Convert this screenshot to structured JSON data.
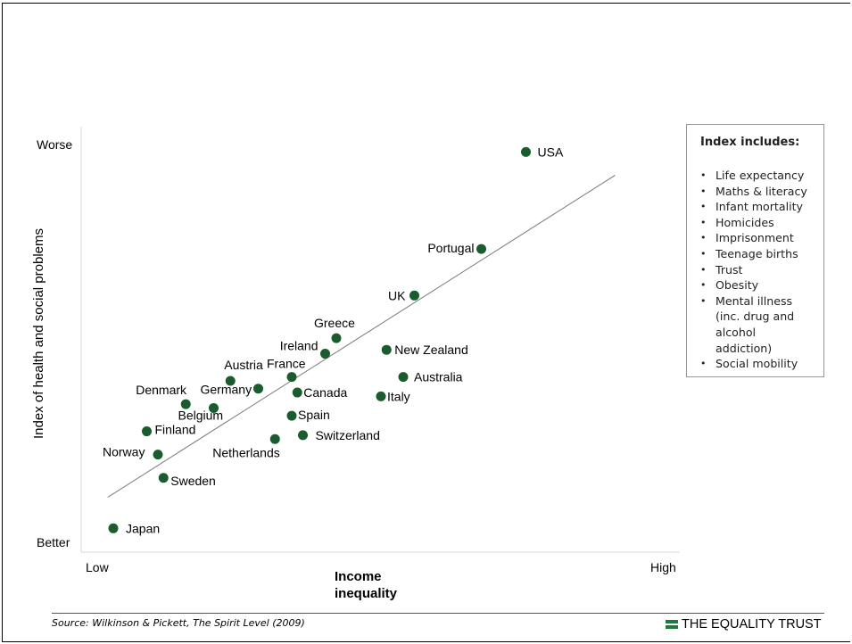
{
  "chart_data": {
    "type": "scatter",
    "xlabel": "Income\ninequality",
    "ylabel": "Index of health and social problems",
    "x_tick_labels": [
      "Low",
      "High"
    ],
    "y_tick_labels": [
      "Worse",
      "Better"
    ],
    "xlim": [
      0,
      1
    ],
    "ylim": [
      0,
      1
    ],
    "point_color": "#1a5c2e",
    "trendline_color": "#777777",
    "trendline": [
      [
        0.03,
        0.1
      ],
      [
        0.94,
        0.93
      ]
    ],
    "points": [
      {
        "name": "USA",
        "x": 0.78,
        "y": 0.99
      },
      {
        "name": "Portugal",
        "x": 0.7,
        "y": 0.74
      },
      {
        "name": "UK",
        "x": 0.58,
        "y": 0.62
      },
      {
        "name": "Greece",
        "x": 0.44,
        "y": 0.51
      },
      {
        "name": "New Zealand",
        "x": 0.53,
        "y": 0.48
      },
      {
        "name": "Ireland",
        "x": 0.42,
        "y": 0.47
      },
      {
        "name": "Australia",
        "x": 0.56,
        "y": 0.41
      },
      {
        "name": "France",
        "x": 0.36,
        "y": 0.41
      },
      {
        "name": "Austria",
        "x": 0.25,
        "y": 0.4
      },
      {
        "name": "Germany",
        "x": 0.3,
        "y": 0.38
      },
      {
        "name": "Canada",
        "x": 0.37,
        "y": 0.37
      },
      {
        "name": "Italy",
        "x": 0.52,
        "y": 0.36
      },
      {
        "name": "Denmark",
        "x": 0.17,
        "y": 0.34
      },
      {
        "name": "Belgium",
        "x": 0.22,
        "y": 0.33
      },
      {
        "name": "Spain",
        "x": 0.36,
        "y": 0.31
      },
      {
        "name": "Finland",
        "x": 0.1,
        "y": 0.27
      },
      {
        "name": "Switzerland",
        "x": 0.38,
        "y": 0.26
      },
      {
        "name": "Netherlands",
        "x": 0.33,
        "y": 0.25
      },
      {
        "name": "Norway",
        "x": 0.12,
        "y": 0.21
      },
      {
        "name": "Sweden",
        "x": 0.13,
        "y": 0.15
      },
      {
        "name": "Japan",
        "x": 0.04,
        "y": 0.02
      }
    ]
  },
  "index_box": {
    "title": "Index includes:",
    "items": [
      "Life expectancy",
      "Maths & literacy",
      "Infant mortality",
      "Homicides",
      "Imprisonment",
      "Teenage births",
      "Trust",
      "Obesity",
      "Mental illness (inc. drug and alcohol addiction)",
      "Social mobility"
    ]
  },
  "footer": {
    "source_text": "Source: Wilkinson & Pickett, The Spirit Level (2009)",
    "brand": "THE EQUALITY TRUST",
    "brand_color": "#1e7a3a"
  }
}
